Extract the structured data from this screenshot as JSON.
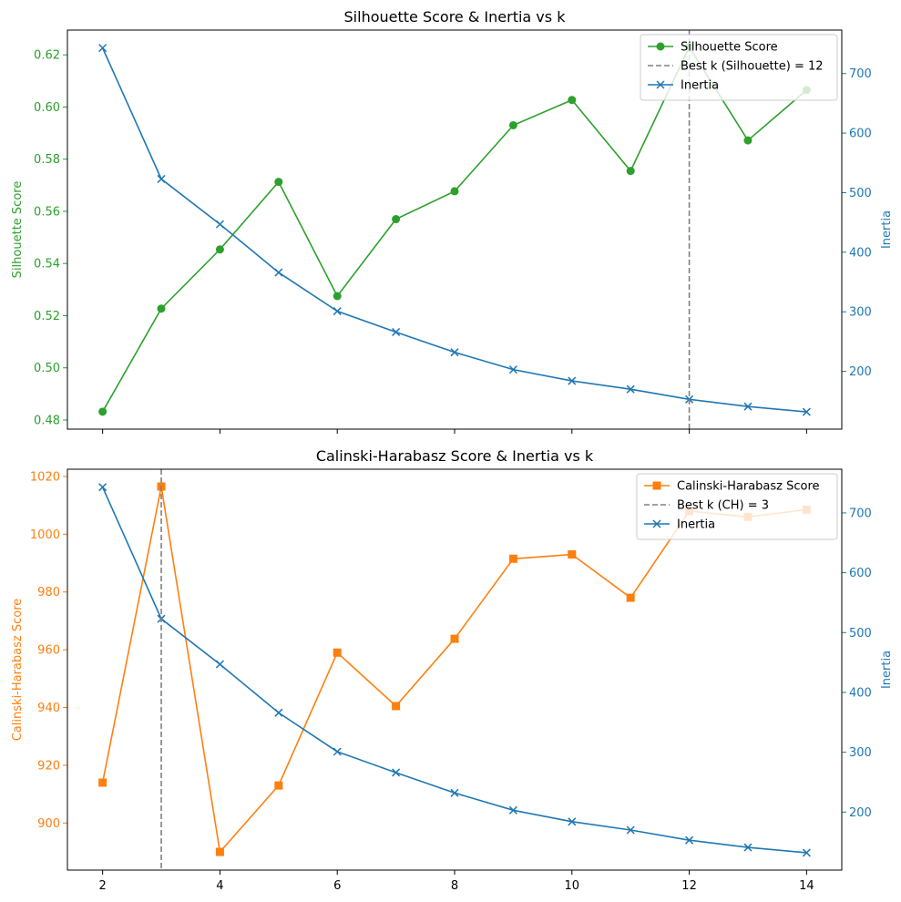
{
  "chart_data": [
    {
      "type": "line",
      "title": "Silhouette Score & Inertia vs k",
      "x": [
        2,
        3,
        4,
        5,
        6,
        7,
        8,
        9,
        10,
        11,
        12,
        13,
        14
      ],
      "xlim": [
        1.4,
        14.6
      ],
      "xticks": [
        2,
        4,
        6,
        8,
        10,
        12,
        14
      ],
      "show_xtick_labels": false,
      "left_axis": {
        "label": "Silhouette Score",
        "color": "#2ca02c",
        "ylim": [
          0.4765,
          0.6295
        ],
        "ticks": [
          0.48,
          0.5,
          0.52,
          0.54,
          0.56,
          0.58,
          0.6,
          0.62
        ],
        "tick_labels": [
          "0.48",
          "0.50",
          "0.52",
          "0.54",
          "0.56",
          "0.58",
          "0.60",
          "0.62"
        ]
      },
      "right_axis": {
        "label": "Inertia",
        "color": "#1f77b4",
        "ylim": [
          103,
          773
        ],
        "ticks": [
          200,
          300,
          400,
          500,
          600,
          700
        ],
        "tick_labels": [
          "200",
          "300",
          "400",
          "500",
          "600",
          "700"
        ]
      },
      "series": [
        {
          "name": "Silhouette Score",
          "axis": "left",
          "color": "#2ca02c",
          "marker": "circle",
          "values": [
            0.4832,
            0.5227,
            0.5454,
            0.5713,
            0.5275,
            0.557,
            0.5677,
            0.593,
            0.6027,
            0.5755,
            0.623,
            0.5872,
            0.6065
          ]
        },
        {
          "name": "Inertia",
          "axis": "right",
          "color": "#1f77b4",
          "marker": "x",
          "values": [
            743,
            523,
            447,
            366,
            301,
            266,
            232,
            203,
            184,
            170,
            153,
            141,
            132
          ]
        }
      ],
      "vline": {
        "x": 12,
        "label": "Best k (Silhouette) = 12",
        "color": "#808080"
      },
      "legend": {
        "position": "top-right",
        "entries": [
          "Silhouette Score",
          "Best k (Silhouette) = 12",
          "Inertia"
        ]
      }
    },
    {
      "type": "line",
      "title": "Calinski-Harabasz Score & Inertia vs k",
      "x": [
        2,
        3,
        4,
        5,
        6,
        7,
        8,
        9,
        10,
        11,
        12,
        13,
        14
      ],
      "xlim": [
        1.4,
        14.6
      ],
      "xticks": [
        2,
        4,
        6,
        8,
        10,
        12,
        14
      ],
      "show_xtick_labels": true,
      "xtick_labels": [
        "2",
        "4",
        "6",
        "8",
        "10",
        "12",
        "14"
      ],
      "left_axis": {
        "label": "Calinski-Harabasz Score",
        "color": "#ff7f0e",
        "ylim": [
          883.7,
          1022.5
        ],
        "ticks": [
          900,
          920,
          940,
          960,
          980,
          1000,
          1020
        ],
        "tick_labels": [
          "900",
          "920",
          "940",
          "960",
          "980",
          "1000",
          "1020"
        ]
      },
      "right_axis": {
        "label": "Inertia",
        "color": "#1f77b4",
        "ylim": [
          103,
          773
        ],
        "ticks": [
          200,
          300,
          400,
          500,
          600,
          700
        ],
        "tick_labels": [
          "200",
          "300",
          "400",
          "500",
          "600",
          "700"
        ]
      },
      "series": [
        {
          "name": "Calinski-Harabasz Score",
          "axis": "left",
          "color": "#ff7f0e",
          "marker": "square",
          "values": [
            914.0,
            1016.5,
            890.0,
            913.0,
            959.0,
            940.5,
            963.8,
            991.5,
            993.0,
            978.0,
            1008.0,
            1006.0,
            1008.5
          ]
        },
        {
          "name": "Inertia",
          "axis": "right",
          "color": "#1f77b4",
          "marker": "x",
          "values": [
            743,
            523,
            447,
            366,
            301,
            266,
            232,
            203,
            184,
            170,
            153,
            141,
            132
          ]
        }
      ],
      "vline": {
        "x": 3,
        "label": "Best k (CH) = 3",
        "color": "#808080"
      },
      "legend": {
        "position": "top-right",
        "entries": [
          "Calinski-Harabasz Score",
          "Best k (CH) = 3",
          "Inertia"
        ]
      }
    }
  ]
}
